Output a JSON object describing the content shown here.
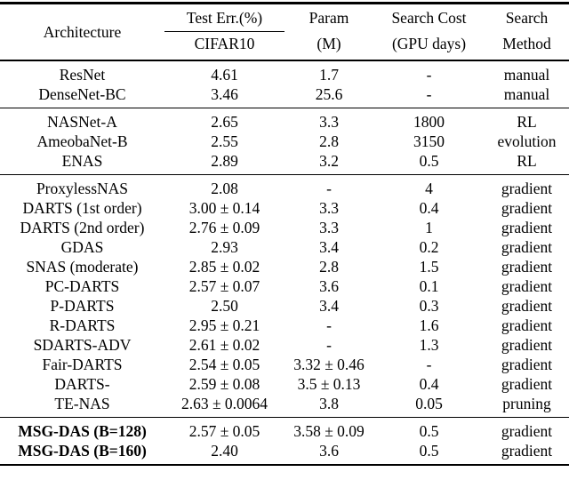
{
  "table": {
    "header": {
      "architecture": "Architecture",
      "test_err_top": "Test Err.(%)",
      "test_err_bottom": "CIFAR10",
      "param_top": "Param",
      "param_bottom": "(M)",
      "search_cost_top": "Search Cost",
      "search_cost_bottom": "(GPU days)",
      "search_method_top": "Search",
      "search_method_bottom": "Method"
    },
    "columns": [
      "architecture",
      "test-err",
      "param",
      "search-cost",
      "search-method"
    ],
    "sections": [
      {
        "bold_first_cell": false,
        "rows": [
          [
            "ResNet",
            "4.61",
            "1.7",
            "-",
            "manual"
          ],
          [
            "DenseNet-BC",
            "3.46",
            "25.6",
            "-",
            "manual"
          ]
        ]
      },
      {
        "bold_first_cell": false,
        "rows": [
          [
            "NASNet-A",
            "2.65",
            "3.3",
            "1800",
            "RL"
          ],
          [
            "AmeobaNet-B",
            "2.55",
            "2.8",
            "3150",
            "evolution"
          ],
          [
            "ENAS",
            "2.89",
            "3.2",
            "0.5",
            "RL"
          ]
        ]
      },
      {
        "bold_first_cell": false,
        "rows": [
          [
            "ProxylessNAS",
            "2.08",
            "-",
            "4",
            "gradient"
          ],
          [
            "DARTS (1st order)",
            "3.00 ± 0.14",
            "3.3",
            "0.4",
            "gradient"
          ],
          [
            "DARTS (2nd order)",
            "2.76 ± 0.09",
            "3.3",
            "1",
            "gradient"
          ],
          [
            "GDAS",
            "2.93",
            "3.4",
            "0.2",
            "gradient"
          ],
          [
            "SNAS (moderate)",
            "2.85 ± 0.02",
            "2.8",
            "1.5",
            "gradient"
          ],
          [
            "PC-DARTS",
            "2.57 ± 0.07",
            "3.6",
            "0.1",
            "gradient"
          ],
          [
            "P-DARTS",
            "2.50",
            "3.4",
            "0.3",
            "gradient"
          ],
          [
            "R-DARTS",
            "2.95 ± 0.21",
            "-",
            "1.6",
            "gradient"
          ],
          [
            "SDARTS-ADV",
            "2.61 ± 0.02",
            "-",
            "1.3",
            "gradient"
          ],
          [
            "Fair-DARTS",
            "2.54 ± 0.05",
            "3.32 ± 0.46",
            "-",
            "gradient"
          ],
          [
            "DARTS-",
            "2.59 ± 0.08",
            "3.5 ± 0.13",
            "0.4",
            "gradient"
          ],
          [
            "TE-NAS",
            "2.63 ± 0.0064",
            "3.8",
            "0.05",
            "pruning"
          ]
        ]
      },
      {
        "bold_first_cell": true,
        "rows": [
          [
            "MSG-DAS (B=128)",
            "2.57 ± 0.05",
            "3.58 ± 0.09",
            "0.5",
            "gradient"
          ],
          [
            "MSG-DAS (B=160)",
            "2.40",
            "3.6",
            "0.5",
            "gradient"
          ]
        ]
      }
    ]
  }
}
